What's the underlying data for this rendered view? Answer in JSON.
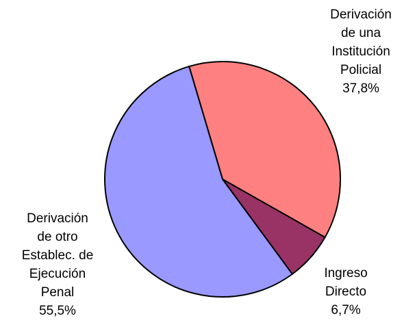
{
  "chart_data": {
    "type": "pie",
    "categories": [
      [
        "Derivación",
        "de una",
        "Institución",
        "Policial"
      ],
      [
        "Ingreso",
        "Directo"
      ],
      [
        "Derivación",
        "de otro",
        "Establec. de",
        "Ejecución",
        "Penal"
      ]
    ],
    "values": [
      37.8,
      6.7,
      55.5
    ],
    "value_labels": [
      "37,8%",
      "6,7%",
      "55,5%"
    ],
    "colors": [
      "#ff8080",
      "#993366",
      "#9999ff"
    ]
  }
}
